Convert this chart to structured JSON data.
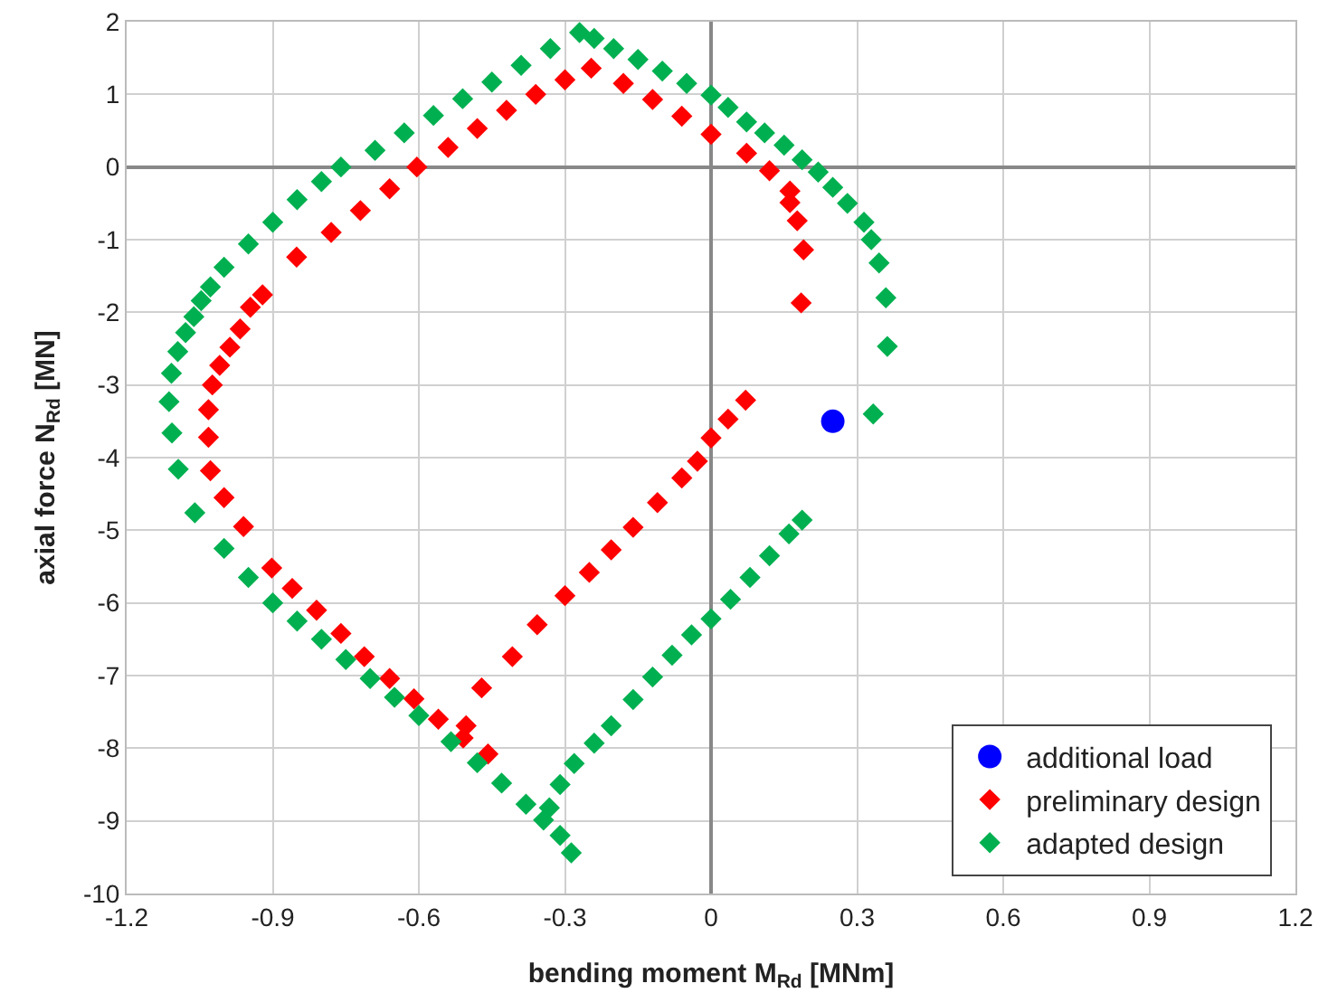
{
  "chart_data": {
    "type": "scatter",
    "xlabel": "bending moment M$_{Rd}$ [MNm]",
    "ylabel": "axial force N$_{Rd}$ [MN]",
    "xlim": [
      -1.2,
      1.2
    ],
    "xticks": [
      -1.2,
      -0.9,
      -0.6,
      -0.3,
      0,
      0.3,
      0.6,
      0.9,
      1.2
    ],
    "ylim": [
      -10,
      2
    ],
    "yticks": [
      -10,
      -9,
      -8,
      -7,
      -6,
      -5,
      -4,
      -3,
      -2,
      -1,
      0,
      1,
      2
    ],
    "grid": true,
    "legend": "bottom right",
    "series": [
      {
        "name": "additional load",
        "color": "#0000ff",
        "marker": "circle",
        "x": [
          0.25
        ],
        "values": [
          -3.5
        ]
      },
      {
        "name": "preliminary design",
        "color": "#ff0000",
        "marker": "diamond",
        "x": [
          -0.246,
          -0.3,
          -0.36,
          -0.42,
          -0.48,
          -0.54,
          -0.604,
          -0.66,
          -0.72,
          -0.78,
          -0.851,
          -0.921,
          -0.946,
          -0.967,
          -0.988,
          -1.009,
          -1.024,
          -1.032,
          -1.032,
          -1.028,
          -1.0,
          -0.96,
          -0.902,
          -0.86,
          -0.81,
          -0.76,
          -0.712,
          -0.66,
          -0.61,
          -0.56,
          -0.509,
          -0.458,
          -0.503,
          -0.471,
          -0.408,
          -0.357,
          -0.3,
          -0.25,
          -0.205,
          -0.16,
          -0.11,
          -0.06,
          -0.028,
          0.0,
          0.035,
          0.071,
          0.185,
          0.19,
          0.177,
          0.162,
          0.162,
          0.12,
          0.073,
          0.0,
          -0.06,
          -0.12,
          -0.18
        ],
        "values": [
          1.36,
          1.2,
          1.0,
          0.78,
          0.53,
          0.27,
          0,
          -0.3,
          -0.6,
          -0.9,
          -1.24,
          -1.76,
          -1.93,
          -2.23,
          -2.48,
          -2.73,
          -3.0,
          -3.34,
          -3.72,
          -4.18,
          -4.55,
          -4.95,
          -5.52,
          -5.8,
          -6.1,
          -6.42,
          -6.74,
          -7.04,
          -7.32,
          -7.6,
          -7.86,
          -8.08,
          -7.69,
          -7.17,
          -6.74,
          -6.3,
          -5.9,
          -5.58,
          -5.27,
          -4.96,
          -4.62,
          -4.28,
          -4.05,
          -3.73,
          -3.47,
          -3.21,
          -1.87,
          -1.14,
          -0.74,
          -0.49,
          -0.33,
          -0.05,
          0.19,
          0.45,
          0.7,
          0.93,
          1.15
        ]
      },
      {
        "name": "adapted design",
        "color": "#00b050",
        "marker": "diamond",
        "x": [
          -0.27,
          -0.33,
          -0.39,
          -0.45,
          -0.51,
          -0.57,
          -0.63,
          -0.69,
          -0.76,
          -0.8,
          -0.85,
          -0.9,
          -0.95,
          -1.0,
          -1.028,
          -1.047,
          -1.062,
          -1.079,
          -1.095,
          -1.108,
          -1.113,
          -1.107,
          -1.094,
          -1.06,
          -1.0,
          -0.95,
          -0.9,
          -0.85,
          -0.8,
          -0.75,
          -0.7,
          -0.65,
          -0.6,
          -0.534,
          -0.48,
          -0.43,
          -0.38,
          -0.344,
          -0.31,
          -0.287,
          -0.332,
          -0.31,
          -0.281,
          -0.24,
          -0.205,
          -0.16,
          -0.12,
          -0.08,
          -0.04,
          0.0,
          0.04,
          0.08,
          0.12,
          0.16,
          0.187,
          0.333,
          0.362,
          0.359,
          0.345,
          0.329,
          0.314,
          0.28,
          0.25,
          0.22,
          0.187,
          0.15,
          0.11,
          0.073,
          0.035,
          0.0,
          -0.05,
          -0.1,
          -0.15,
          -0.2,
          -0.24
        ],
        "values": [
          1.85,
          1.63,
          1.4,
          1.17,
          0.94,
          0.71,
          0.47,
          0.23,
          0,
          -0.2,
          -0.45,
          -0.76,
          -1.06,
          -1.38,
          -1.65,
          -1.84,
          -2.06,
          -2.28,
          -2.54,
          -2.84,
          -3.23,
          -3.66,
          -4.16,
          -4.76,
          -5.25,
          -5.65,
          -6.0,
          -6.25,
          -6.5,
          -6.78,
          -7.04,
          -7.3,
          -7.55,
          -7.91,
          -8.2,
          -8.48,
          -8.77,
          -8.99,
          -9.2,
          -9.44,
          -8.82,
          -8.5,
          -8.21,
          -7.93,
          -7.69,
          -7.33,
          -7.02,
          -6.72,
          -6.44,
          -6.22,
          -5.95,
          -5.65,
          -5.35,
          -5.05,
          -4.86,
          -3.4,
          -2.47,
          -1.8,
          -1.32,
          -1.0,
          -0.76,
          -0.5,
          -0.28,
          -0.07,
          0.1,
          0.3,
          0.47,
          0.62,
          0.82,
          0.99,
          1.15,
          1.32,
          1.48,
          1.63,
          1.77
        ]
      }
    ]
  }
}
